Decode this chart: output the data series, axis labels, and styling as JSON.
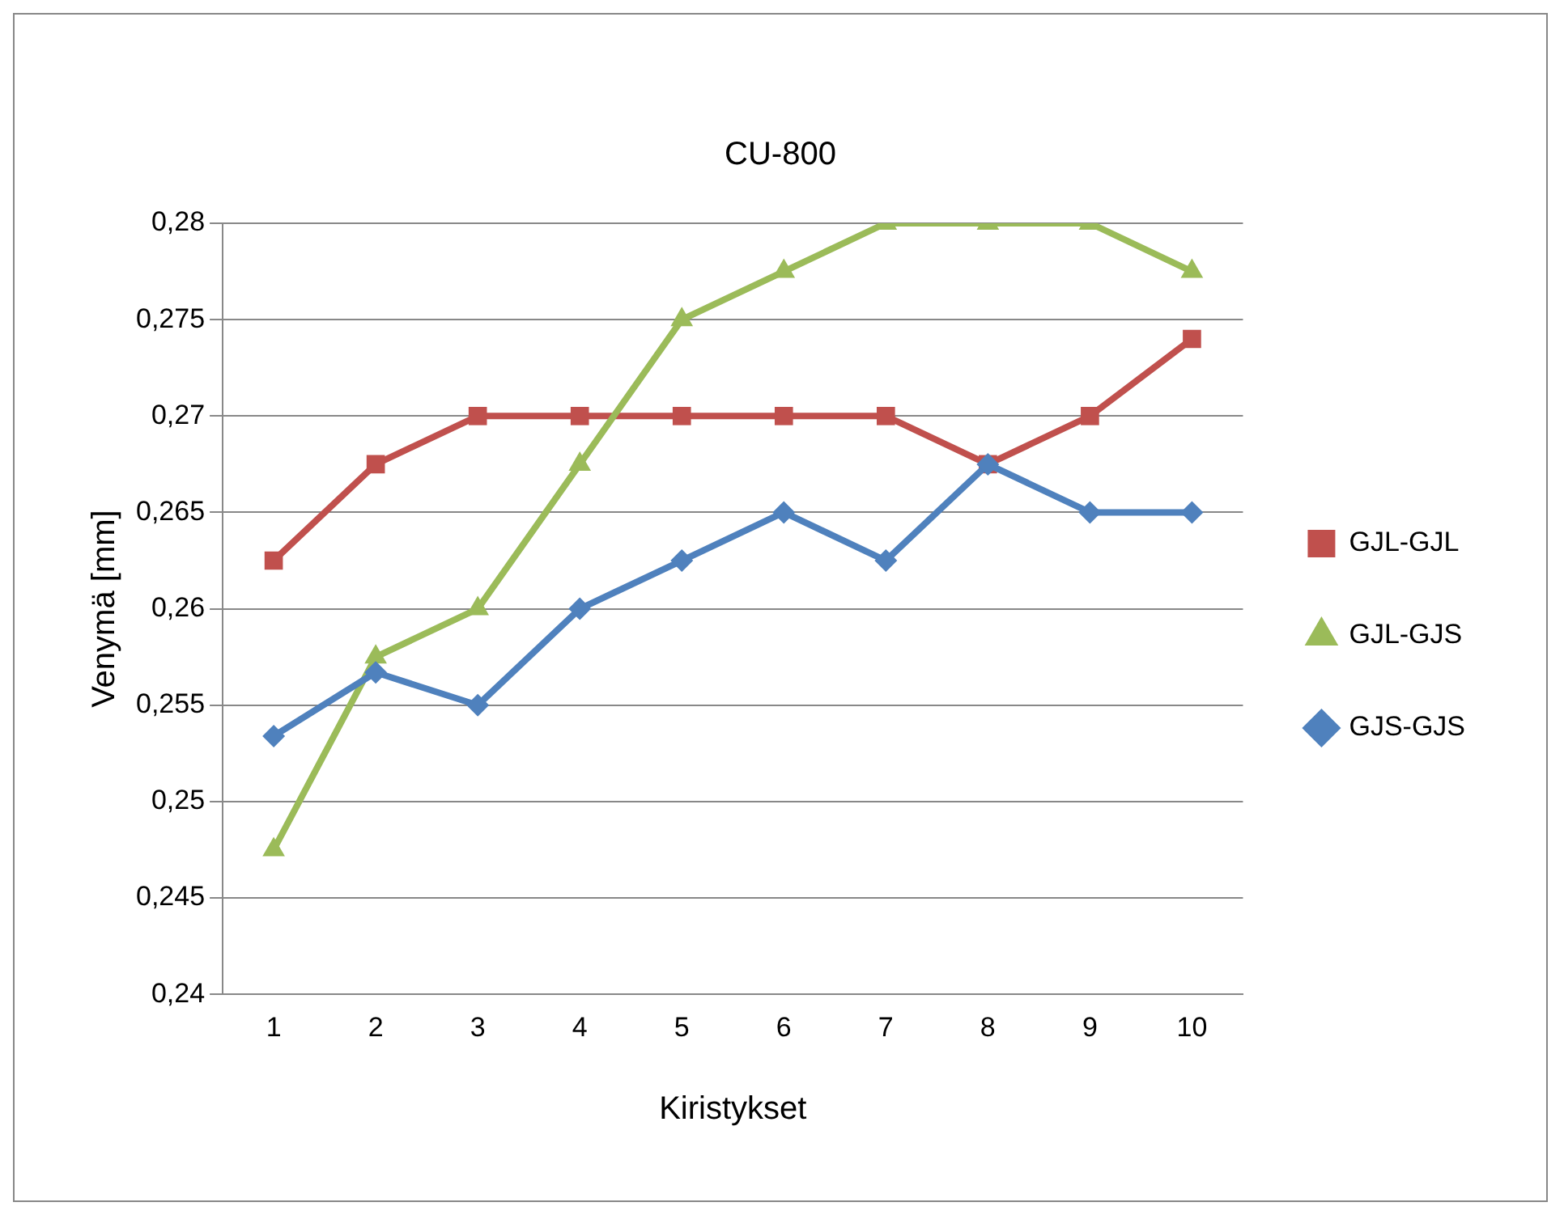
{
  "chart_data": {
    "type": "line",
    "title": "CU-800",
    "xlabel": "Kiristykset",
    "ylabel": "Venymä [mm]",
    "categories": [
      "1",
      "2",
      "3",
      "4",
      "5",
      "6",
      "7",
      "8",
      "9",
      "10"
    ],
    "series": [
      {
        "name": "GJL-GJL",
        "color": "#c0504d",
        "marker": "square",
        "values": [
          0.2625,
          0.2675,
          0.27,
          0.27,
          0.27,
          0.27,
          0.27,
          0.2675,
          0.27,
          0.274
        ]
      },
      {
        "name": "GJL-GJS",
        "color": "#9bbb59",
        "marker": "triangle",
        "values": [
          0.2475,
          0.2575,
          0.26,
          0.2675,
          0.275,
          0.2775,
          0.28,
          0.28,
          0.28,
          0.2775
        ]
      },
      {
        "name": "GJS-GJS",
        "color": "#4f81bd",
        "marker": "diamond",
        "values": [
          0.2534,
          0.2567,
          0.255,
          0.26,
          0.2625,
          0.265,
          0.2625,
          0.2675,
          0.265,
          0.265
        ]
      }
    ],
    "ylim": [
      0.24,
      0.28
    ],
    "yticks": [
      {
        "value": 0.24,
        "label": "0,24"
      },
      {
        "value": 0.245,
        "label": "0,245"
      },
      {
        "value": 0.25,
        "label": "0,25"
      },
      {
        "value": 0.255,
        "label": "0,255"
      },
      {
        "value": 0.26,
        "label": "0,26"
      },
      {
        "value": 0.265,
        "label": "0,265"
      },
      {
        "value": 0.27,
        "label": "0,27"
      },
      {
        "value": 0.275,
        "label": "0,275"
      },
      {
        "value": 0.28,
        "label": "0,28"
      }
    ],
    "grid": "y",
    "legend": "right",
    "line_style": "solid"
  }
}
